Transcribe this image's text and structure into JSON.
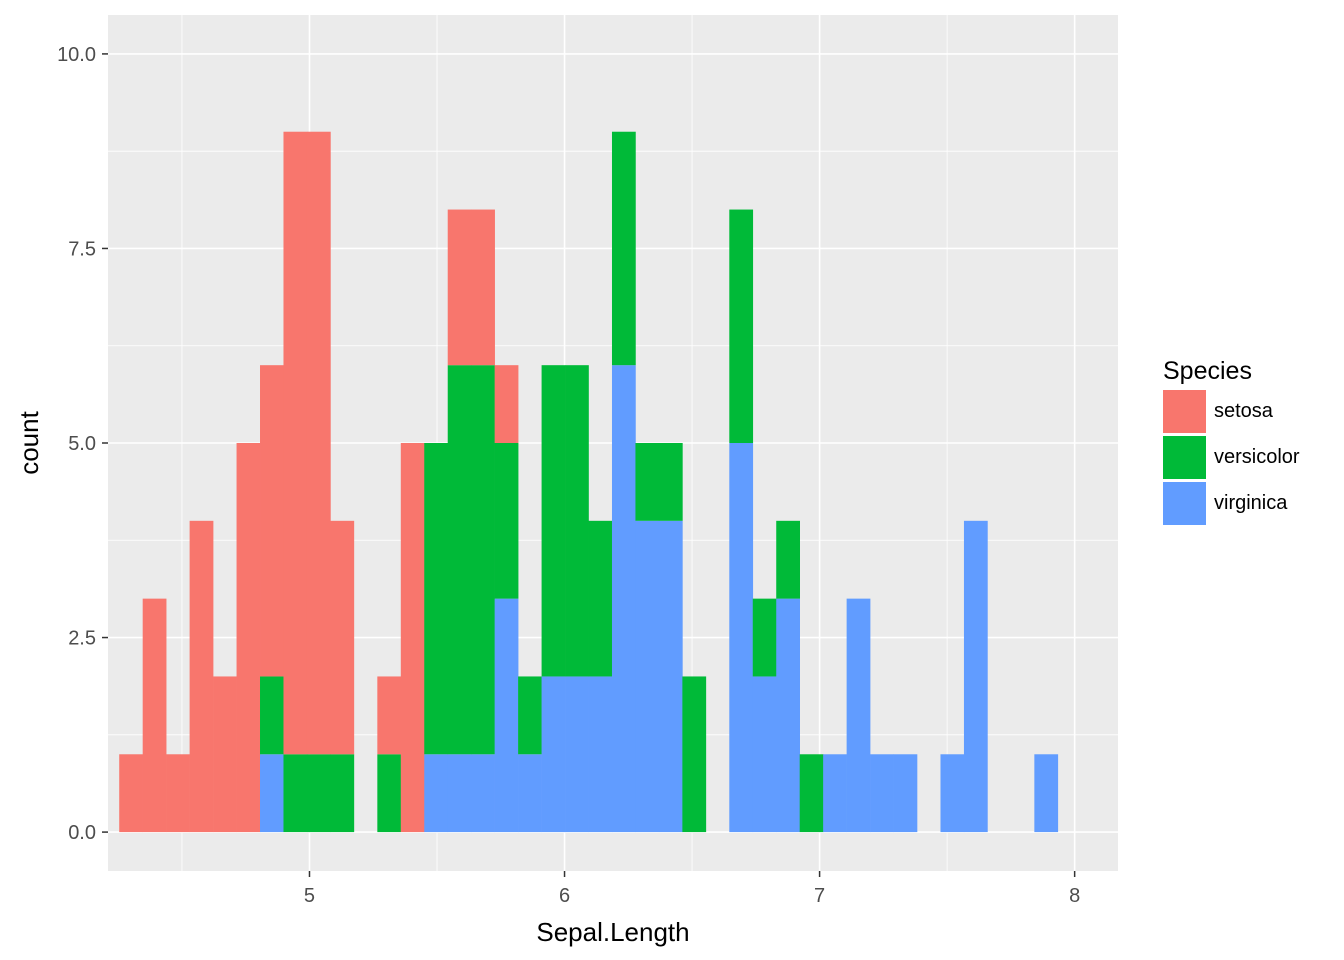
{
  "chart_data": {
    "type": "histogram",
    "position": "stack",
    "binwidth": 0.092,
    "x_field": "Sepal.Length",
    "xlabel": "Sepal.Length",
    "ylabel": "count",
    "xlim": [
      4.21,
      8.17
    ],
    "ylim": [
      -0.5,
      10.5
    ],
    "x_ticks": [
      5,
      6,
      7,
      8
    ],
    "x_tick_labels": [
      "5",
      "6",
      "7",
      "8"
    ],
    "y_ticks": [
      0,
      2.5,
      5,
      7.5,
      10
    ],
    "y_tick_labels": [
      "0.0",
      "2.5",
      "5.0",
      "7.5",
      "10.0"
    ],
    "bin_centers": [
      4.3,
      4.392,
      4.484,
      4.576,
      4.668,
      4.76,
      4.852,
      4.944,
      5.036,
      5.128,
      5.22,
      5.312,
      5.404,
      5.496,
      5.588,
      5.68,
      5.772,
      5.864,
      5.956,
      6.048,
      6.14,
      6.232,
      6.324,
      6.416,
      6.508,
      6.6,
      6.692,
      6.784,
      6.876,
      6.968,
      7.06,
      7.152,
      7.244,
      7.336,
      7.428,
      7.52,
      7.612,
      7.704,
      7.796,
      7.888,
      7.98
    ],
    "series": [
      {
        "name": "setosa",
        "color": "#F8766D",
        "values": [
          1,
          3,
          1,
          4,
          2,
          5,
          4,
          8,
          8,
          3,
          0,
          1,
          5,
          0,
          2,
          2,
          1,
          0,
          0,
          0,
          0,
          0,
          0,
          0,
          0,
          0,
          0,
          0,
          0,
          0,
          0,
          0,
          0,
          0,
          0,
          0,
          0,
          0,
          0,
          0,
          0
        ]
      },
      {
        "name": "versicolor",
        "color": "#00BA38",
        "values": [
          0,
          0,
          0,
          0,
          0,
          0,
          1,
          1,
          1,
          1,
          0,
          1,
          0,
          4,
          5,
          5,
          2,
          1,
          4,
          4,
          2,
          3,
          1,
          1,
          2,
          0,
          3,
          1,
          1,
          1,
          0,
          0,
          0,
          0,
          0,
          0,
          0,
          0,
          0,
          0,
          0
        ]
      },
      {
        "name": "virginica",
        "color": "#619CFF",
        "values": [
          0,
          0,
          0,
          0,
          0,
          0,
          1,
          0,
          0,
          0,
          0,
          0,
          0,
          1,
          1,
          1,
          3,
          1,
          2,
          2,
          2,
          6,
          4,
          4,
          0,
          0,
          5,
          2,
          3,
          0,
          1,
          3,
          1,
          1,
          0,
          1,
          4,
          0,
          0,
          1,
          0
        ]
      }
    ],
    "legend_title": "Species",
    "legend_position": "right",
    "grid": true
  },
  "legend": {
    "title": "Species",
    "items": [
      {
        "label": "setosa",
        "color": "#F8766D"
      },
      {
        "label": "versicolor",
        "color": "#00BA38"
      },
      {
        "label": "virginica",
        "color": "#619CFF"
      }
    ]
  }
}
